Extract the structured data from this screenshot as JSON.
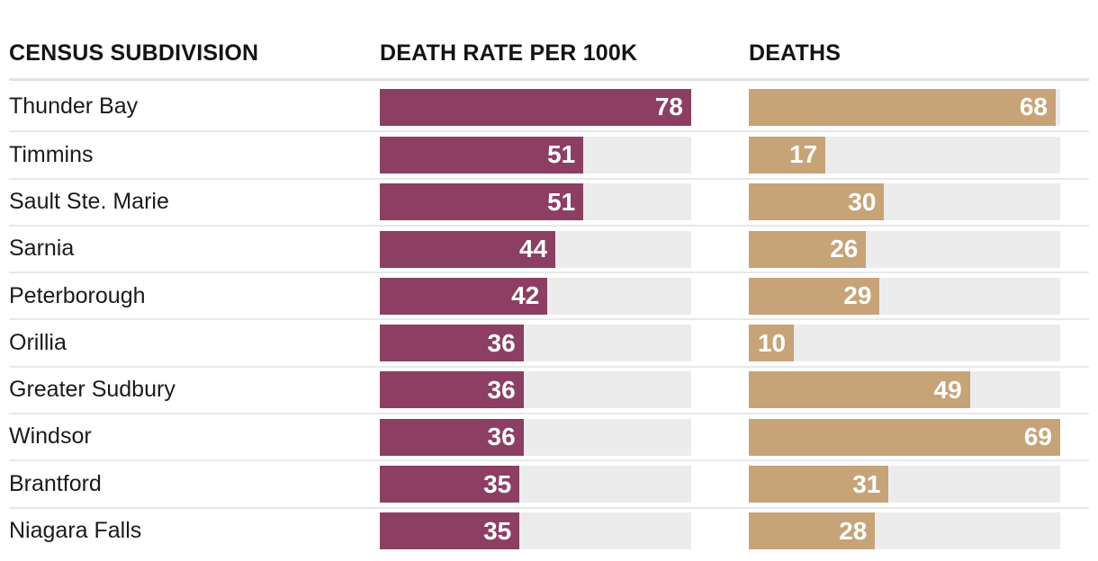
{
  "header": {
    "census_label": "CENSUS SUBDIVISION",
    "rate_label": "DEATH RATE PER 100K",
    "deaths_label": "DEATHS"
  },
  "colors": {
    "rate_bar": "#8c3f62",
    "deaths_bar": "#c7a378",
    "bar_track": "#ececec",
    "separator": "#e8e8e8",
    "header_rule": "#e3e3e3",
    "value_text": "#ffffff",
    "label_text": "#1a1a1a",
    "background": "#ffffff"
  },
  "chart_data": {
    "type": "bar",
    "orientation": "horizontal",
    "title": "",
    "xlabel": "",
    "ylabel": "",
    "grid": false,
    "legend_position": "column-headers",
    "value_labels": "inside-end",
    "categories": [
      "Thunder Bay",
      "Timmins",
      "Sault Ste. Marie",
      "Sarnia",
      "Peterborough",
      "Orillia",
      "Greater Sudbury",
      "Windsor",
      "Brantford",
      "Niagara Falls"
    ],
    "series": [
      {
        "name": "DEATH RATE PER 100K",
        "values": [
          78,
          51,
          51,
          44,
          42,
          36,
          36,
          36,
          35,
          35
        ],
        "axis_max": 78,
        "color": "#8c3f62"
      },
      {
        "name": "DEATHS",
        "values": [
          68,
          17,
          30,
          26,
          29,
          10,
          49,
          69,
          31,
          28
        ],
        "axis_max": 69,
        "color": "#c7a378"
      }
    ]
  }
}
